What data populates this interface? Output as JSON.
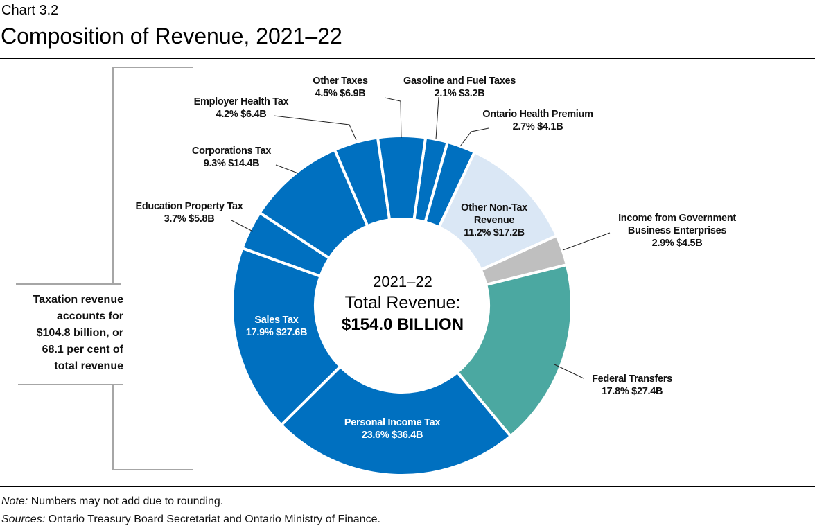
{
  "chart_data": {
    "type": "pie",
    "subtype": "donut",
    "chart_number": "Chart 3.2",
    "title": "Composition of Revenue, 2021–22",
    "center_text": [
      "2021–22",
      "Total Revenue:",
      "$154.0 BILLION"
    ],
    "slices": [
      {
        "name": "Gasoline and Fuel Taxes",
        "percent": 2.1,
        "value_label": "$3.2B",
        "value": 3.2,
        "color": "#0070C0"
      },
      {
        "name": "Ontario Health Premium",
        "percent": 2.7,
        "value_label": "$4.1B",
        "value": 4.1,
        "color": "#0070C0"
      },
      {
        "name": "Other Non-Tax Revenue",
        "percent": 11.2,
        "value_label": "$17.2B",
        "value": 17.2,
        "color": "#DAE7F5"
      },
      {
        "name": "Income from Government Business Enterprises",
        "percent": 2.9,
        "value_label": "$4.5B",
        "value": 4.5,
        "color": "#BFBFBF"
      },
      {
        "name": "Federal Transfers",
        "percent": 17.8,
        "value_label": "$27.4B",
        "value": 27.4,
        "color": "#4BA8A1"
      },
      {
        "name": "Personal Income Tax",
        "percent": 23.6,
        "value_label": "$36.4B",
        "value": 36.4,
        "color": "#0070C0"
      },
      {
        "name": "Sales Tax",
        "percent": 17.9,
        "value_label": "$27.6B",
        "value": 27.6,
        "color": "#0070C0"
      },
      {
        "name": "Education Property Tax",
        "percent": 3.7,
        "value_label": "$5.8B",
        "value": 5.8,
        "color": "#0070C0"
      },
      {
        "name": "Corporations Tax",
        "percent": 9.3,
        "value_label": "$14.4B",
        "value": 14.4,
        "color": "#0070C0"
      },
      {
        "name": "Employer Health Tax",
        "percent": 4.2,
        "value_label": "$6.4B",
        "value": 6.4,
        "color": "#0070C0"
      },
      {
        "name": "Other Taxes",
        "percent": 4.5,
        "value_label": "$6.9B",
        "value": 6.9,
        "color": "#0070C0"
      }
    ],
    "labels": {
      "gasoline": [
        "Gasoline and Fuel Taxes",
        "2.1%  $3.2B"
      ],
      "ohp": [
        "Ontario Health Premium",
        "2.7%  $4.1B"
      ],
      "nontax": [
        "Other Non-Tax",
        "Revenue",
        "11.2%  $17.2B"
      ],
      "gbe": [
        "Income from Government",
        "Business Enterprises",
        "2.9%  $4.5B"
      ],
      "federal": [
        "Federal Transfers",
        "17.8%  $27.4B"
      ],
      "pit": [
        "Personal Income Tax",
        "23.6%  $36.4B"
      ],
      "sales": [
        "Sales Tax",
        "17.9%  $27.6B"
      ],
      "education": [
        "Education Property Tax",
        "3.7%  $5.8B"
      ],
      "corporations": [
        "Corporations Tax",
        "9.3%  $14.4B"
      ],
      "employer": [
        "Employer Health Tax",
        "4.2%  $6.4B"
      ],
      "othertaxes": [
        "Other Taxes",
        "4.5%  $6.9B"
      ]
    },
    "annotation": [
      "Taxation revenue",
      "accounts for",
      "$104.8 billion, or",
      "68.1 per cent of",
      "total revenue"
    ],
    "note_label": "Note:",
    "note": " Numbers may not add due to rounding.",
    "sources_label": "Sources:",
    "sources": " Ontario Treasury Board Secretariat and Ontario Ministry of Finance."
  }
}
